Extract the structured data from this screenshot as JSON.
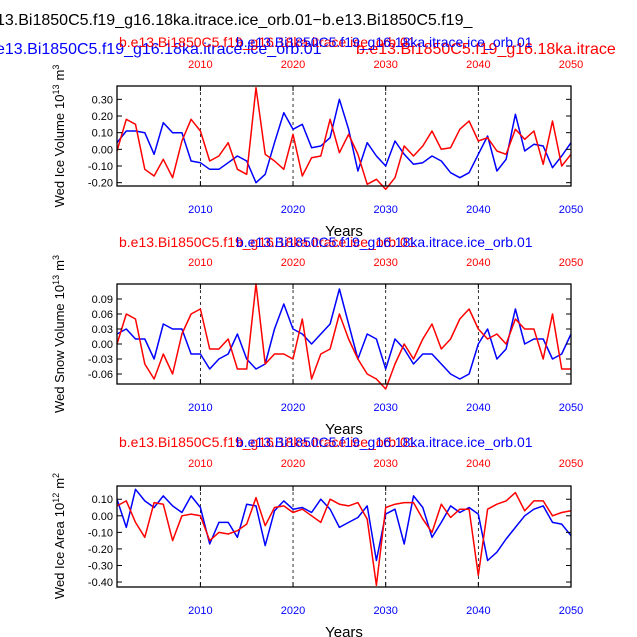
{
  "header": {
    "title_black": "13.Bi1850C5.f19_g16.18ka.itrace.ice_orb.01−b.e13.Bi1850C5.f19_",
    "title_blue": "e13.Bi1850C5.f19_g16.18ka.itrace.ice_orb.01",
    "title_red": "b.e13.Bi1850C5.f19_g16.18ka.itrace"
  },
  "colors": {
    "red": "#ff0000",
    "blue": "#0000ff",
    "black": "#000000"
  },
  "chart_data": [
    {
      "type": "line",
      "id": "volume",
      "ylabel": "Wed Ice Volume",
      "unit_base": "10",
      "unit_exp": "13",
      "unit_tail": "m",
      "unit_tail_exp": "3",
      "xlabel": "Years",
      "label_red": "b.e13.Bi1850C5.f19_g16.18ka.itrace.ice_orb.01",
      "label_blue": "b.e13.Bi1850C5.f19_g16.18ka.itrace.ice_orb.01",
      "label_overlap": "b.e13.Bi1850C5.f1900",
      "xlim": [
        2001,
        2050
      ],
      "ylim": [
        -0.22,
        0.38
      ],
      "xticks": [
        2010,
        2020,
        2030,
        2040,
        2050
      ],
      "yticks": [
        -0.2,
        -0.1,
        0.0,
        0.1,
        0.2,
        0.3
      ],
      "ytick_labels": [
        "-0.20",
        "-0.10",
        "0.00",
        "0.10",
        "0.20",
        "0.30"
      ],
      "series": [
        {
          "name": "blue",
          "values": [
            0.04,
            0.11,
            0.11,
            0.1,
            -0.03,
            0.16,
            0.1,
            0.1,
            -0.07,
            -0.08,
            -0.12,
            -0.12,
            -0.08,
            -0.04,
            -0.07,
            -0.2,
            -0.15,
            0.04,
            0.22,
            0.12,
            0.15,
            0.01,
            0.02,
            0.07,
            0.3,
            0.12,
            -0.13,
            0.04,
            -0.04,
            -0.1,
            0.05,
            -0.03,
            -0.09,
            -0.08,
            -0.04,
            -0.07,
            -0.14,
            -0.17,
            -0.14,
            -0.03,
            0.08,
            -0.13,
            -0.06,
            0.21,
            -0.01,
            0.03,
            0.02,
            -0.11,
            -0.04,
            0.04
          ]
        },
        {
          "name": "red",
          "values": [
            -0.01,
            0.18,
            0.15,
            -0.12,
            -0.16,
            -0.06,
            -0.17,
            0.05,
            0.18,
            0.11,
            -0.07,
            -0.04,
            0.04,
            -0.12,
            -0.15,
            0.37,
            -0.03,
            -0.07,
            -0.12,
            0.09,
            -0.16,
            -0.05,
            -0.04,
            0.18,
            -0.02,
            0.09,
            -0.03,
            -0.21,
            -0.18,
            -0.24,
            -0.17,
            0.02,
            -0.04,
            0.02,
            0.11,
            0.0,
            0.01,
            0.12,
            0.17,
            0.05,
            0.07,
            -0.01,
            -0.03,
            0.12,
            0.06,
            0.11,
            -0.09,
            0.17,
            -0.1,
            -0.03
          ]
        }
      ]
    },
    {
      "type": "line",
      "id": "snow",
      "ylabel": "Wed Snow Volume",
      "unit_base": "10",
      "unit_exp": "13",
      "unit_tail": "m",
      "unit_tail_exp": "3",
      "xlabel": "Years",
      "label_red": "b.e13.Bi1850C5.f19_g16.18ka.itrace.ice_orb.01",
      "label_blue": "b.e13.Bi1850C5.f19_g16.18ka.itrace.ice_orb.01",
      "label_overlap": "b.e13.Bi1850C5.f1900",
      "xlim": [
        2001,
        2050
      ],
      "ylim": [
        -0.08,
        0.12
      ],
      "xticks": [
        2010,
        2020,
        2030,
        2040,
        2050
      ],
      "yticks": [
        -0.06,
        -0.03,
        0.0,
        0.03,
        0.06,
        0.09
      ],
      "ytick_labels": [
        "-0.06",
        "-0.03",
        "0.00",
        "0.03",
        "0.06",
        "0.09"
      ],
      "series": [
        {
          "name": "blue",
          "values": [
            0.02,
            0.03,
            0.01,
            0.01,
            -0.03,
            0.04,
            0.03,
            0.03,
            -0.02,
            -0.02,
            -0.05,
            -0.03,
            -0.02,
            0.02,
            -0.03,
            -0.05,
            -0.04,
            0.03,
            0.08,
            0.03,
            0.02,
            0.0,
            0.02,
            0.04,
            0.11,
            0.04,
            -0.03,
            0.02,
            0.01,
            -0.05,
            0.01,
            -0.01,
            -0.04,
            -0.02,
            -0.02,
            -0.04,
            -0.06,
            -0.07,
            -0.06,
            0.0,
            0.03,
            -0.03,
            -0.01,
            0.07,
            0.0,
            0.01,
            0.01,
            -0.03,
            -0.02,
            0.02
          ]
        },
        {
          "name": "red",
          "values": [
            0.0,
            0.06,
            0.05,
            -0.04,
            -0.07,
            -0.02,
            -0.06,
            0.02,
            0.06,
            0.07,
            -0.01,
            -0.01,
            0.01,
            -0.05,
            -0.05,
            0.12,
            -0.04,
            -0.02,
            -0.02,
            -0.03,
            0.05,
            -0.07,
            -0.02,
            -0.01,
            0.06,
            0.01,
            -0.03,
            -0.06,
            -0.07,
            -0.09,
            -0.04,
            0.0,
            -0.03,
            0.01,
            0.04,
            -0.01,
            0.01,
            0.05,
            0.07,
            0.03,
            0.01,
            0.02,
            0.0,
            0.05,
            0.03,
            0.03,
            -0.03,
            0.06,
            -0.05,
            -0.05
          ]
        }
      ]
    },
    {
      "type": "line",
      "id": "area",
      "ylabel": "Wed Ice Area",
      "unit_base": "10",
      "unit_exp": "12",
      "unit_tail": "m",
      "unit_tail_exp": "2",
      "xlabel": "Years",
      "label_red": "b.e13.Bi1850C5.f19_g16.18ka.itrace.ice_orb.01",
      "label_blue": "b.e13.Bi1850C5.f19_g16.18ka.itrace.ice_orb.01",
      "label_overlap": "b.e13.Bi1850C5.f1900",
      "xlim": [
        2001,
        2050
      ],
      "ylim": [
        -0.43,
        0.18
      ],
      "xticks": [
        2010,
        2020,
        2030,
        2040,
        2050
      ],
      "yticks": [
        -0.4,
        -0.3,
        -0.2,
        -0.1,
        0.0,
        0.1
      ],
      "ytick_labels": [
        "-0.40",
        "-0.30",
        "-0.20",
        "-0.10",
        "0.00",
        "0.10"
      ],
      "series": [
        {
          "name": "blue",
          "values": [
            0.1,
            -0.07,
            0.16,
            0.09,
            0.05,
            0.12,
            0.06,
            0.02,
            0.12,
            0.05,
            -0.17,
            -0.04,
            -0.04,
            -0.13,
            0.07,
            0.06,
            -0.18,
            0.03,
            0.09,
            0.04,
            0.05,
            0.02,
            0.1,
            0.04,
            -0.07,
            -0.04,
            -0.01,
            0.06,
            -0.27,
            0.01,
            0.04,
            -0.17,
            0.12,
            0.05,
            -0.13,
            -0.04,
            0.06,
            0.02,
            0.05,
            0.01,
            -0.27,
            -0.22,
            -0.14,
            -0.07,
            0.0,
            0.04,
            0.06,
            -0.04,
            -0.05,
            -0.12
          ]
        },
        {
          "name": "red",
          "values": [
            0.06,
            0.09,
            -0.04,
            -0.13,
            0.08,
            0.07,
            -0.15,
            0.0,
            0.01,
            0.0,
            -0.15,
            -0.1,
            -0.11,
            -0.09,
            -0.05,
            0.11,
            -0.06,
            0.05,
            0.06,
            0.02,
            0.04,
            0.0,
            -0.04,
            0.1,
            0.07,
            0.06,
            0.08,
            -0.02,
            -0.42,
            0.05,
            0.07,
            0.08,
            0.08,
            -0.02,
            -0.1,
            0.07,
            -0.01,
            0.04,
            0.04,
            -0.36,
            0.04,
            0.07,
            0.09,
            0.14,
            0.03,
            0.09,
            0.09,
            0.0,
            0.02,
            0.03
          ]
        }
      ]
    }
  ]
}
